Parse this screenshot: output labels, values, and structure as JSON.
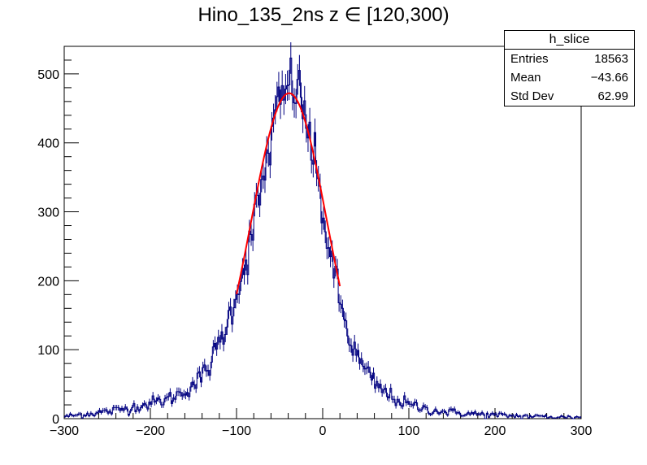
{
  "chart_data": {
    "type": "histogram",
    "title": "Hino_135_2ns z  ∈ [120,300)",
    "xlabel": "",
    "ylabel": "",
    "xlim": [
      -300,
      300
    ],
    "ylim": [
      0,
      540
    ],
    "x_ticks": [
      -300,
      -200,
      -100,
      0,
      100,
      200,
      300
    ],
    "y_ticks": [
      0,
      100,
      200,
      300,
      400,
      500
    ],
    "bin_width": 2,
    "histogram_color": "#000080",
    "fit_color": "#ff0000",
    "bin_profile": [
      [
        -300,
        3
      ],
      [
        -280,
        6
      ],
      [
        -260,
        9
      ],
      [
        -240,
        12
      ],
      [
        -220,
        17
      ],
      [
        -200,
        22
      ],
      [
        -180,
        28
      ],
      [
        -160,
        40
      ],
      [
        -140,
        60
      ],
      [
        -130,
        80
      ],
      [
        -120,
        110
      ],
      [
        -110,
        140
      ],
      [
        -100,
        185
      ],
      [
        -90,
        225
      ],
      [
        -80,
        280
      ],
      [
        -70,
        340
      ],
      [
        -60,
        405
      ],
      [
        -50,
        455
      ],
      [
        -40,
        480
      ],
      [
        -35,
        490
      ],
      [
        -30,
        478
      ],
      [
        -20,
        440
      ],
      [
        -10,
        375
      ],
      [
        0,
        300
      ],
      [
        10,
        230
      ],
      [
        20,
        170
      ],
      [
        30,
        120
      ],
      [
        40,
        90
      ],
      [
        50,
        68
      ],
      [
        60,
        52
      ],
      [
        70,
        40
      ],
      [
        80,
        32
      ],
      [
        90,
        25
      ],
      [
        100,
        20
      ],
      [
        120,
        14
      ],
      [
        140,
        10
      ],
      [
        160,
        8
      ],
      [
        200,
        5
      ],
      [
        250,
        3
      ],
      [
        300,
        2
      ]
    ],
    "fit": {
      "function": "gaussian",
      "constant": 472,
      "mean": -39,
      "sigma": 44,
      "range": [
        -100,
        20
      ]
    },
    "stats_box": {
      "title": "h_slice",
      "rows": [
        {
          "label": "Entries",
          "value": "18563"
        },
        {
          "label": "Mean",
          "value": "−43.66"
        },
        {
          "label": "Std Dev",
          "value": "62.99"
        }
      ]
    }
  }
}
